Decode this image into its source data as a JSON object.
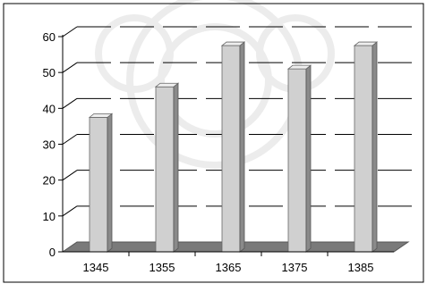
{
  "chart_data": {
    "type": "bar",
    "categories": [
      "1345",
      "1355",
      "1365",
      "1375",
      "1385"
    ],
    "values": [
      37.5,
      46,
      57.5,
      51,
      57.5
    ],
    "ylim": [
      0,
      60
    ],
    "yticks": [
      "0",
      "10",
      "20",
      "30",
      "40",
      "50",
      "60"
    ],
    "grid": true,
    "style": "3d-column",
    "colors": {
      "bar_front": "#d0d0d0",
      "bar_side": "#8a8a8a",
      "bar_top": "#eeeeee",
      "floor": "#7a7a7a",
      "gridline": "#000000",
      "background": "#ffffff"
    }
  }
}
